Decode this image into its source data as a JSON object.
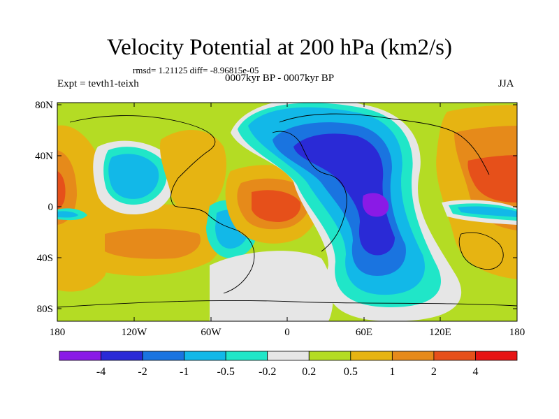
{
  "title": "Velocity Potential at 200 hPa (km2/s)",
  "rmsd_text": "rmsd= 1.21125 diff= -8.96815e-05",
  "expt_text": "Expt = tevth1-teixh",
  "periods_text": "0007kyr BP - 0007kyr BP",
  "season": "JJA",
  "lat_labels": [
    "80N",
    "40N",
    "0",
    "40S",
    "80S"
  ],
  "lon_labels": [
    "180",
    "120W",
    "60W",
    "0",
    "60E",
    "120E",
    "180"
  ],
  "colorbar": {
    "labels": [
      "-4",
      "-2",
      "-1",
      "-0.5",
      "-0.2",
      "0.2",
      "0.5",
      "1",
      "2",
      "4"
    ],
    "colors": [
      "#8a1ae6",
      "#2a2ad6",
      "#1a74e0",
      "#12b8e8",
      "#20e6c8",
      "#e6e6e6",
      "#b4dc24",
      "#e6b412",
      "#e68a1a",
      "#e6501a",
      "#e61414"
    ]
  },
  "colors": {
    "neg4": "#8a1ae6",
    "neg2": "#2a2ad6",
    "neg1": "#1a74e0",
    "neg05": "#12b8e8",
    "neg02": "#20e6c8",
    "zero": "#e6e6e6",
    "pos02": "#b4dc24",
    "pos05": "#e6b412",
    "pos1": "#e68a1a",
    "pos2": "#e6501a",
    "pos4": "#e61414"
  }
}
